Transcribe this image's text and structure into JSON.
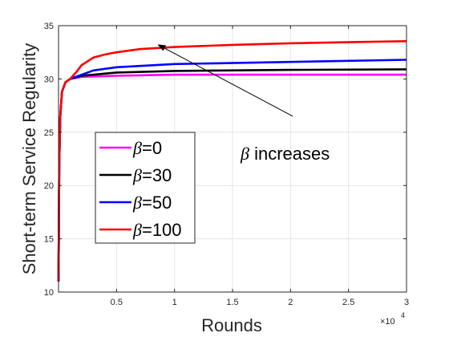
{
  "chart_data": {
    "type": "line",
    "xlabel": "Rounds",
    "ylabel": "Short-term Service Regularity",
    "xlim": [
      0,
      30000
    ],
    "ylim": [
      10,
      35
    ],
    "x_ticks": [
      5000,
      10000,
      15000,
      20000,
      25000,
      30000
    ],
    "x_tick_labels": [
      "0.5",
      "1",
      "1.5",
      "2",
      "2.5",
      "3"
    ],
    "x_exponent": {
      "base": "×10",
      "power": "4"
    },
    "y_ticks": [
      10,
      15,
      20,
      25,
      30,
      35
    ],
    "grid": true,
    "legend_position": "lower-left",
    "series": [
      {
        "name": "β=0",
        "beta_symbol": "β",
        "beta_value": "=0",
        "color": "#ff00ff",
        "points": [
          [
            0,
            11
          ],
          [
            60,
            22
          ],
          [
            150,
            26.5
          ],
          [
            300,
            28.8
          ],
          [
            600,
            29.7
          ],
          [
            1000,
            30.0
          ],
          [
            2000,
            30.2
          ],
          [
            5000,
            30.3
          ],
          [
            10000,
            30.4
          ],
          [
            20000,
            30.4
          ],
          [
            30000,
            30.4
          ]
        ]
      },
      {
        "name": "β=30",
        "beta_symbol": "β",
        "beta_value": "=30",
        "color": "#000000",
        "points": [
          [
            0,
            11
          ],
          [
            60,
            22
          ],
          [
            150,
            26.5
          ],
          [
            300,
            28.8
          ],
          [
            600,
            29.7
          ],
          [
            1000,
            30.0
          ],
          [
            2000,
            30.3
          ],
          [
            5000,
            30.6
          ],
          [
            10000,
            30.75
          ],
          [
            20000,
            30.85
          ],
          [
            30000,
            30.9
          ]
        ]
      },
      {
        "name": "β=50",
        "beta_symbol": "β",
        "beta_value": "=50",
        "color": "#0000ff",
        "points": [
          [
            0,
            11
          ],
          [
            60,
            22
          ],
          [
            150,
            26.5
          ],
          [
            300,
            28.8
          ],
          [
            600,
            29.7
          ],
          [
            1000,
            30.0
          ],
          [
            2000,
            30.4
          ],
          [
            3000,
            30.8
          ],
          [
            5000,
            31.1
          ],
          [
            10000,
            31.4
          ],
          [
            20000,
            31.6
          ],
          [
            30000,
            31.8
          ]
        ]
      },
      {
        "name": "β=100",
        "beta_symbol": "β",
        "beta_value": "=100",
        "color": "#ff0000",
        "points": [
          [
            0,
            11
          ],
          [
            60,
            22
          ],
          [
            150,
            26.5
          ],
          [
            300,
            28.8
          ],
          [
            600,
            29.7
          ],
          [
            1000,
            30.0
          ],
          [
            1500,
            30.6
          ],
          [
            2000,
            31.3
          ],
          [
            3000,
            32.0
          ],
          [
            4000,
            32.3
          ],
          [
            5000,
            32.5
          ],
          [
            7000,
            32.8
          ],
          [
            10000,
            33.0
          ],
          [
            15000,
            33.2
          ],
          [
            20000,
            33.35
          ],
          [
            25000,
            33.45
          ],
          [
            30000,
            33.55
          ]
        ]
      }
    ],
    "annotation": {
      "symbol": "β",
      "text": " increases",
      "arrow_from": [
        20200,
        26.5
      ],
      "arrow_to": [
        8600,
        33.2
      ]
    }
  }
}
